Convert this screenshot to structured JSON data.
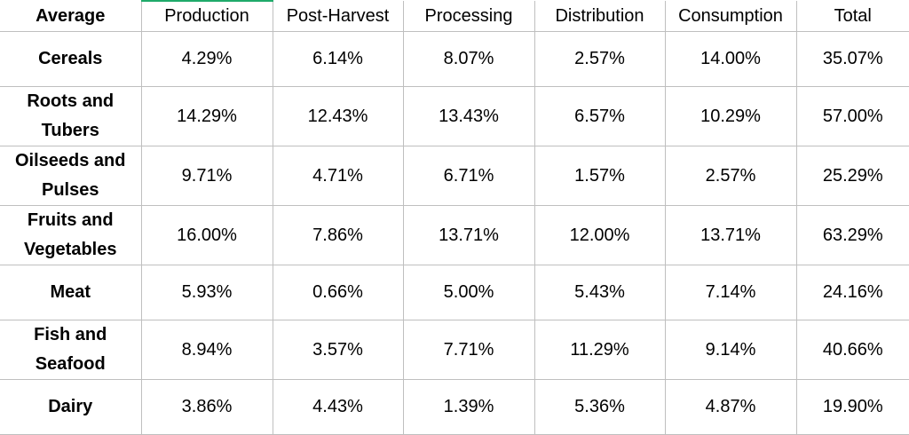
{
  "table": {
    "headers": [
      "Average",
      "Production",
      "Post-Harvest",
      "Processing",
      "Distribution",
      "Consumption",
      "Total"
    ],
    "rows": [
      {
        "category": "Cereals",
        "values": [
          "4.29%",
          "6.14%",
          "8.07%",
          "2.57%",
          "14.00%",
          "35.07%"
        ]
      },
      {
        "category": "Roots and Tubers",
        "values": [
          "14.29%",
          "12.43%",
          "13.43%",
          "6.57%",
          "10.29%",
          "57.00%"
        ]
      },
      {
        "category": "Oilseeds and Pulses",
        "values": [
          "9.71%",
          "4.71%",
          "6.71%",
          "1.57%",
          "2.57%",
          "25.29%"
        ]
      },
      {
        "category": "Fruits and Vegetables",
        "values": [
          "16.00%",
          "7.86%",
          "13.71%",
          "12.00%",
          "13.71%",
          "63.29%"
        ]
      },
      {
        "category": "Meat",
        "values": [
          "5.93%",
          "0.66%",
          "5.00%",
          "5.43%",
          "7.14%",
          "24.16%"
        ]
      },
      {
        "category": "Fish and Seafood",
        "values": [
          "8.94%",
          "3.57%",
          "7.71%",
          "11.29%",
          "9.14%",
          "40.66%"
        ]
      },
      {
        "category": "Dairy",
        "values": [
          "3.86%",
          "4.43%",
          "1.39%",
          "5.36%",
          "4.87%",
          "19.90%"
        ]
      }
    ]
  },
  "colors": {
    "grid": "#bfbfbf",
    "selected_cell_accent": "#1faa6a",
    "text": "#000000",
    "background": "#ffffff"
  }
}
